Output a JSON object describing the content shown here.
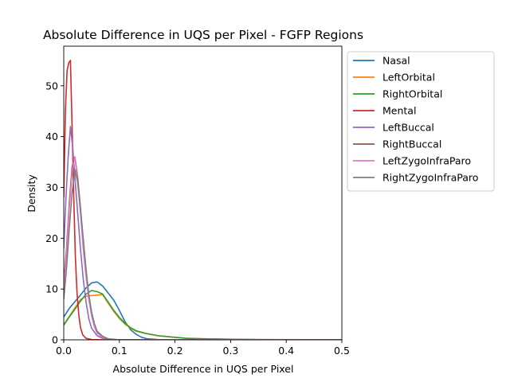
{
  "chart_data": {
    "type": "line",
    "title": "Absolute Difference in UQS per Pixel - FGFP Regions",
    "xlabel": "Absolute Difference in UQS per Pixel",
    "ylabel": "Density",
    "xlim": [
      0,
      0.5
    ],
    "ylim": [
      0,
      57.8
    ],
    "xticks": [
      "0.0",
      "0.1",
      "0.2",
      "0.3",
      "0.4",
      "0.5"
    ],
    "xtick_values": [
      0,
      0.1,
      0.2,
      0.3,
      0.4,
      0.5
    ],
    "yticks": [
      "0",
      "10",
      "20",
      "30",
      "40",
      "50"
    ],
    "ytick_values": [
      0,
      10,
      20,
      30,
      40,
      50
    ],
    "grid": false,
    "legend_position": "outside-right",
    "series": [
      {
        "name": "Nasal",
        "color": "#1f77b4",
        "points": [
          [
            0,
            4.5
          ],
          [
            0.01,
            6.2
          ],
          [
            0.02,
            7.5
          ],
          [
            0.03,
            8.8
          ],
          [
            0.04,
            10.2
          ],
          [
            0.05,
            11.2
          ],
          [
            0.06,
            11.4
          ],
          [
            0.07,
            10.6
          ],
          [
            0.08,
            9.2
          ],
          [
            0.09,
            7.8
          ],
          [
            0.1,
            5.8
          ],
          [
            0.11,
            3.6
          ],
          [
            0.12,
            2.0
          ],
          [
            0.13,
            1.1
          ],
          [
            0.14,
            0.5
          ],
          [
            0.15,
            0.2
          ],
          [
            0.17,
            0.05
          ],
          [
            0.2,
            0
          ],
          [
            0.5,
            0
          ]
        ]
      },
      {
        "name": "LeftOrbital",
        "color": "#ff7f0e",
        "points": [
          [
            0,
            3.0
          ],
          [
            0.01,
            4.6
          ],
          [
            0.02,
            6.3
          ],
          [
            0.03,
            7.9
          ],
          [
            0.04,
            8.6
          ],
          [
            0.05,
            8.7
          ],
          [
            0.06,
            8.8
          ],
          [
            0.07,
            8.9
          ],
          [
            0.08,
            7.2
          ],
          [
            0.09,
            5.6
          ],
          [
            0.1,
            4.2
          ],
          [
            0.11,
            3.1
          ],
          [
            0.12,
            2.3
          ],
          [
            0.13,
            1.7
          ],
          [
            0.15,
            1.2
          ],
          [
            0.17,
            0.8
          ],
          [
            0.2,
            0.5
          ],
          [
            0.22,
            0.3
          ],
          [
            0.25,
            0.2
          ],
          [
            0.3,
            0.1
          ],
          [
            0.35,
            0.05
          ],
          [
            0.5,
            0
          ]
        ]
      },
      {
        "name": "RightOrbital",
        "color": "#2ca02c",
        "points": [
          [
            0,
            2.9
          ],
          [
            0.01,
            4.5
          ],
          [
            0.02,
            6.0
          ],
          [
            0.03,
            7.6
          ],
          [
            0.04,
            9.0
          ],
          [
            0.05,
            9.7
          ],
          [
            0.06,
            9.5
          ],
          [
            0.07,
            9.0
          ],
          [
            0.08,
            7.4
          ],
          [
            0.09,
            5.8
          ],
          [
            0.1,
            4.4
          ],
          [
            0.11,
            3.3
          ],
          [
            0.12,
            2.4
          ],
          [
            0.13,
            1.8
          ],
          [
            0.15,
            1.2
          ],
          [
            0.17,
            0.8
          ],
          [
            0.2,
            0.5
          ],
          [
            0.22,
            0.3
          ],
          [
            0.25,
            0.2
          ],
          [
            0.3,
            0.1
          ],
          [
            0.35,
            0.05
          ],
          [
            0.5,
            0
          ]
        ]
      },
      {
        "name": "Mental",
        "color": "#d62728",
        "points": [
          [
            0,
            28
          ],
          [
            0.003,
            45
          ],
          [
            0.006,
            53
          ],
          [
            0.009,
            54.5
          ],
          [
            0.012,
            55
          ],
          [
            0.015,
            42
          ],
          [
            0.018,
            28
          ],
          [
            0.021,
            16
          ],
          [
            0.024,
            9
          ],
          [
            0.027,
            5
          ],
          [
            0.03,
            2.5
          ],
          [
            0.034,
            1.0
          ],
          [
            0.04,
            0.3
          ],
          [
            0.05,
            0.05
          ],
          [
            0.07,
            0
          ],
          [
            0.5,
            0
          ]
        ]
      },
      {
        "name": "LeftBuccal",
        "color": "#9467bd",
        "points": [
          [
            0,
            18
          ],
          [
            0.004,
            28
          ],
          [
            0.008,
            36
          ],
          [
            0.012,
            42
          ],
          [
            0.016,
            38
          ],
          [
            0.02,
            32
          ],
          [
            0.025,
            25
          ],
          [
            0.03,
            18
          ],
          [
            0.035,
            12
          ],
          [
            0.04,
            7.5
          ],
          [
            0.045,
            4.2
          ],
          [
            0.05,
            2.3
          ],
          [
            0.06,
            0.8
          ],
          [
            0.07,
            0.3
          ],
          [
            0.08,
            0.1
          ],
          [
            0.1,
            0
          ],
          [
            0.5,
            0
          ]
        ]
      },
      {
        "name": "RightBuccal",
        "color": "#8c564b",
        "points": [
          [
            0,
            11
          ],
          [
            0.005,
            18
          ],
          [
            0.01,
            27
          ],
          [
            0.015,
            34
          ],
          [
            0.02,
            36
          ],
          [
            0.025,
            32
          ],
          [
            0.03,
            26
          ],
          [
            0.035,
            19
          ],
          [
            0.04,
            13
          ],
          [
            0.045,
            8.5
          ],
          [
            0.05,
            5.0
          ],
          [
            0.055,
            2.8
          ],
          [
            0.06,
            1.4
          ],
          [
            0.07,
            0.5
          ],
          [
            0.08,
            0.15
          ],
          [
            0.1,
            0
          ],
          [
            0.5,
            0
          ]
        ]
      },
      {
        "name": "LeftZygoInfraParo",
        "color": "#e377c2",
        "points": [
          [
            0,
            10
          ],
          [
            0.005,
            17
          ],
          [
            0.01,
            26
          ],
          [
            0.015,
            33
          ],
          [
            0.02,
            36
          ],
          [
            0.025,
            31
          ],
          [
            0.03,
            25
          ],
          [
            0.035,
            18
          ],
          [
            0.04,
            12.5
          ],
          [
            0.045,
            8
          ],
          [
            0.05,
            4.8
          ],
          [
            0.055,
            2.6
          ],
          [
            0.06,
            1.3
          ],
          [
            0.07,
            0.5
          ],
          [
            0.08,
            0.15
          ],
          [
            0.1,
            0
          ],
          [
            0.5,
            0
          ]
        ]
      },
      {
        "name": "RightZygoInfraParo",
        "color": "#7f7f7f",
        "points": [
          [
            0,
            8
          ],
          [
            0.005,
            14
          ],
          [
            0.01,
            22
          ],
          [
            0.015,
            29
          ],
          [
            0.02,
            33.5
          ],
          [
            0.025,
            31
          ],
          [
            0.03,
            26
          ],
          [
            0.035,
            20
          ],
          [
            0.04,
            14
          ],
          [
            0.045,
            9
          ],
          [
            0.05,
            5.5
          ],
          [
            0.055,
            3.2
          ],
          [
            0.06,
            1.7
          ],
          [
            0.07,
            0.7
          ],
          [
            0.08,
            0.2
          ],
          [
            0.1,
            0
          ],
          [
            0.5,
            0
          ]
        ]
      }
    ]
  }
}
